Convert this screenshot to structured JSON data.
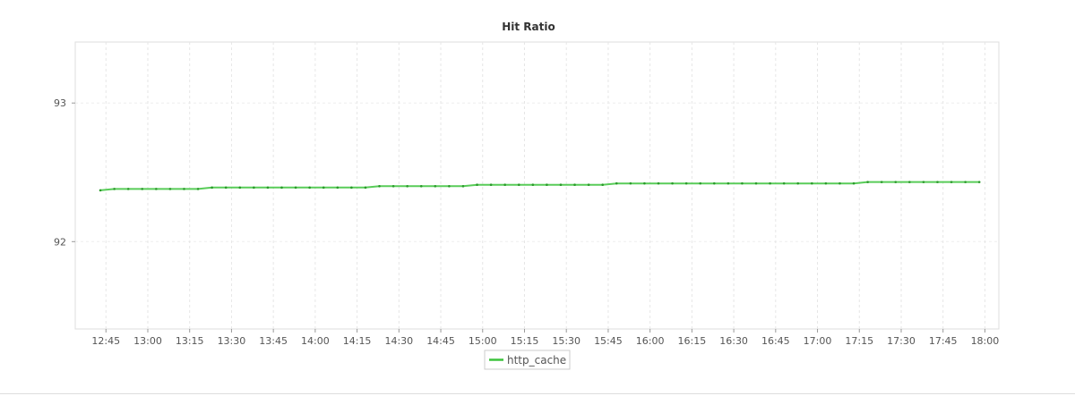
{
  "chart_data": {
    "type": "line",
    "title": "Hit Ratio",
    "xlabel": "",
    "ylabel": "",
    "ylim": [
      91.37,
      93.44
    ],
    "xlim": [
      "12:34",
      "18:05"
    ],
    "grid": true,
    "legend": "bottom-center",
    "yticks": [
      92,
      93
    ],
    "xticks": [
      "12:45",
      "13:00",
      "13:15",
      "13:30",
      "13:45",
      "14:00",
      "14:15",
      "14:30",
      "14:45",
      "15:00",
      "15:15",
      "15:30",
      "15:45",
      "16:00",
      "16:15",
      "16:30",
      "16:45",
      "17:00",
      "17:15",
      "17:30",
      "17:45",
      "18:00"
    ],
    "series": [
      {
        "name": "http_cache",
        "color": "#3cc33c",
        "x": [
          "12:43",
          "12:48",
          "12:53",
          "12:58",
          "13:03",
          "13:08",
          "13:13",
          "13:18",
          "13:23",
          "13:28",
          "13:33",
          "13:38",
          "13:43",
          "13:48",
          "13:53",
          "13:58",
          "14:03",
          "14:08",
          "14:13",
          "14:18",
          "14:23",
          "14:28",
          "14:33",
          "14:38",
          "14:43",
          "14:48",
          "14:53",
          "14:58",
          "15:03",
          "15:08",
          "15:13",
          "15:18",
          "15:23",
          "15:28",
          "15:33",
          "15:38",
          "15:43",
          "15:48",
          "15:53",
          "15:58",
          "16:03",
          "16:08",
          "16:13",
          "16:18",
          "16:23",
          "16:28",
          "16:33",
          "16:38",
          "16:43",
          "16:48",
          "16:53",
          "16:58",
          "17:03",
          "17:08",
          "17:13",
          "17:18",
          "17:23",
          "17:28",
          "17:33",
          "17:38",
          "17:43",
          "17:48",
          "17:53",
          "17:58"
        ],
        "values": [
          92.37,
          92.38,
          92.38,
          92.38,
          92.38,
          92.38,
          92.38,
          92.38,
          92.39,
          92.39,
          92.39,
          92.39,
          92.39,
          92.39,
          92.39,
          92.39,
          92.39,
          92.39,
          92.39,
          92.39,
          92.4,
          92.4,
          92.4,
          92.4,
          92.4,
          92.4,
          92.4,
          92.41,
          92.41,
          92.41,
          92.41,
          92.41,
          92.41,
          92.41,
          92.41,
          92.41,
          92.41,
          92.42,
          92.42,
          92.42,
          92.42,
          92.42,
          92.42,
          92.42,
          92.42,
          92.42,
          92.42,
          92.42,
          92.42,
          92.42,
          92.42,
          92.42,
          92.42,
          92.42,
          92.42,
          92.43,
          92.43,
          92.43,
          92.43,
          92.43,
          92.43,
          92.43,
          92.43,
          92.43
        ]
      }
    ]
  }
}
